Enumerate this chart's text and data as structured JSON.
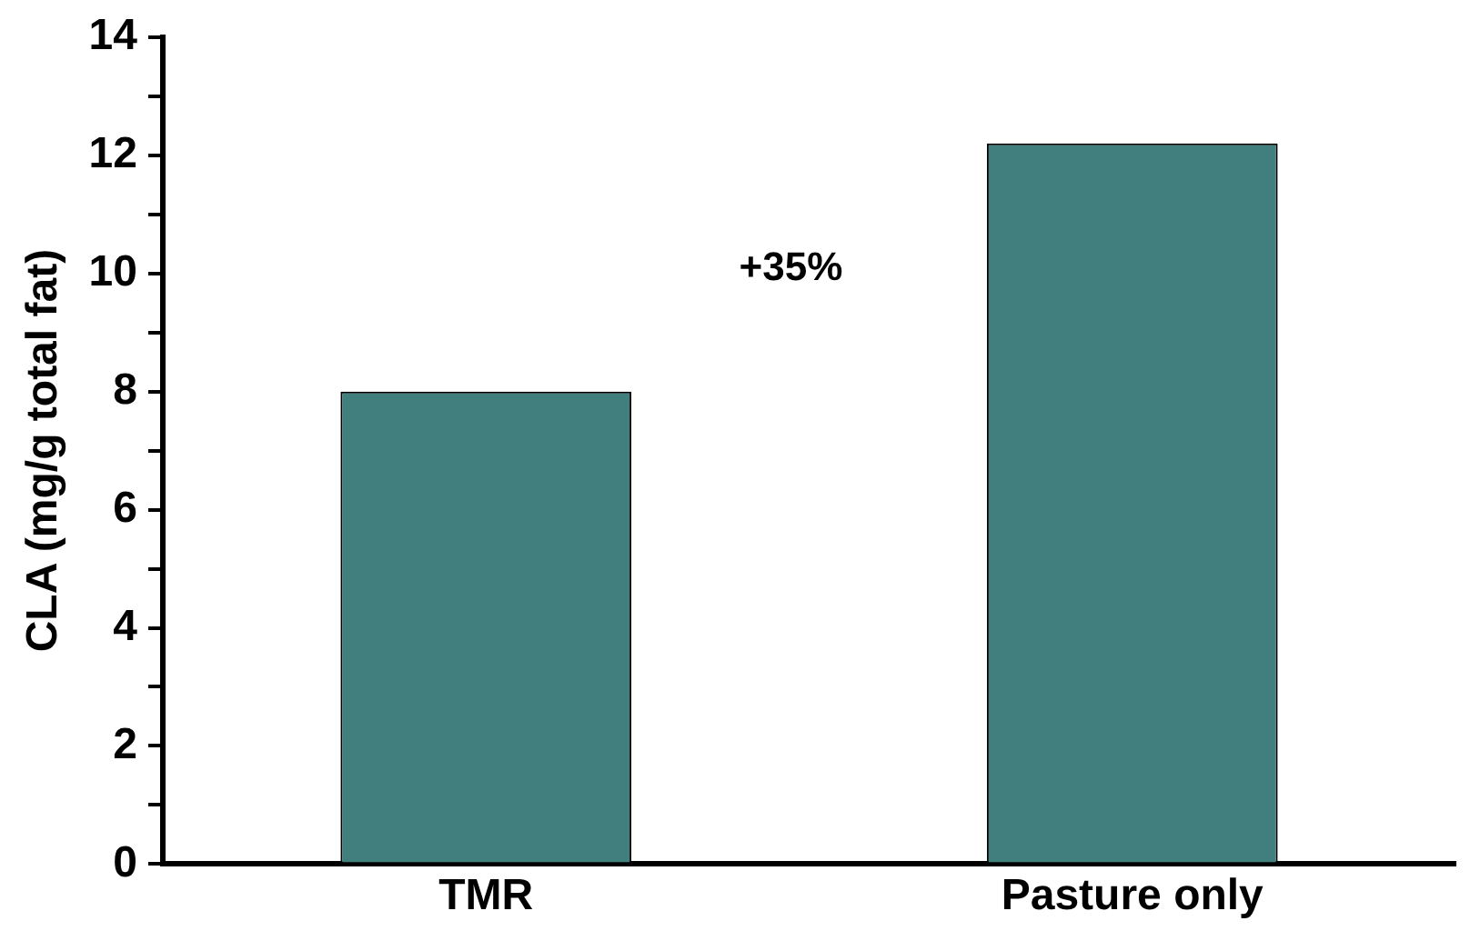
{
  "chart_data": {
    "type": "bar",
    "ylabel": "CLA (mg/g total fat)",
    "categories": [
      "TMR",
      "Pasture only"
    ],
    "values": [
      8,
      12.2
    ],
    "color": "#417e7e",
    "ylim": [
      0,
      14
    ],
    "yticks": [
      0,
      {
        "value": 1,
        "label": null
      },
      2,
      {
        "value": 3,
        "label": null
      },
      4,
      {
        "value": 5,
        "label": null
      },
      6,
      {
        "value": 7,
        "label": null
      },
      8,
      {
        "value": 9,
        "label": null
      },
      10,
      {
        "value": 11,
        "label": null
      },
      12,
      {
        "value": 13,
        "label": null
      },
      14
    ],
    "grid": false,
    "legend": false,
    "annotations": [
      "+35%"
    ]
  }
}
